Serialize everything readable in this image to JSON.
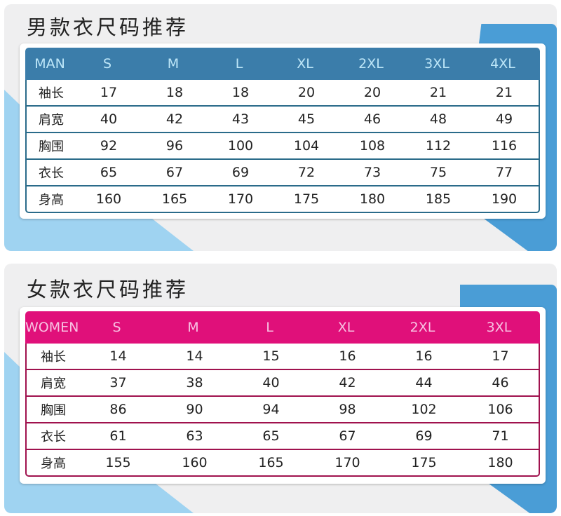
{
  "men": {
    "title": "男款衣尺码推荐",
    "header": [
      "MAN",
      "S",
      "M",
      "L",
      "XL",
      "2XL",
      "3XL",
      "4XL"
    ],
    "rows": [
      [
        "袖长",
        "17",
        "18",
        "18",
        "20",
        "20",
        "21",
        "21"
      ],
      [
        "肩宽",
        "40",
        "42",
        "43",
        "45",
        "46",
        "48",
        "49"
      ],
      [
        "胸围",
        "92",
        "96",
        "100",
        "104",
        "108",
        "112",
        "116"
      ],
      [
        "衣长",
        "65",
        "67",
        "69",
        "72",
        "73",
        "75",
        "77"
      ],
      [
        "身高",
        "160",
        "165",
        "170",
        "175",
        "180",
        "185",
        "190"
      ]
    ],
    "accent": "#3b7daa"
  },
  "women": {
    "title": "女款衣尺码推荐",
    "header": [
      "WOMEN",
      "S",
      "M",
      "L",
      "XL",
      "2XL",
      "3XL"
    ],
    "rows": [
      [
        "袖长",
        "14",
        "14",
        "15",
        "16",
        "16",
        "17"
      ],
      [
        "肩宽",
        "37",
        "38",
        "40",
        "42",
        "44",
        "46"
      ],
      [
        "胸围",
        "86",
        "90",
        "94",
        "98",
        "102",
        "106"
      ],
      [
        "衣长",
        "61",
        "63",
        "65",
        "67",
        "69",
        "71"
      ],
      [
        "身高",
        "155",
        "160",
        "165",
        "170",
        "175",
        "180"
      ]
    ],
    "accent": "#e0107a"
  }
}
